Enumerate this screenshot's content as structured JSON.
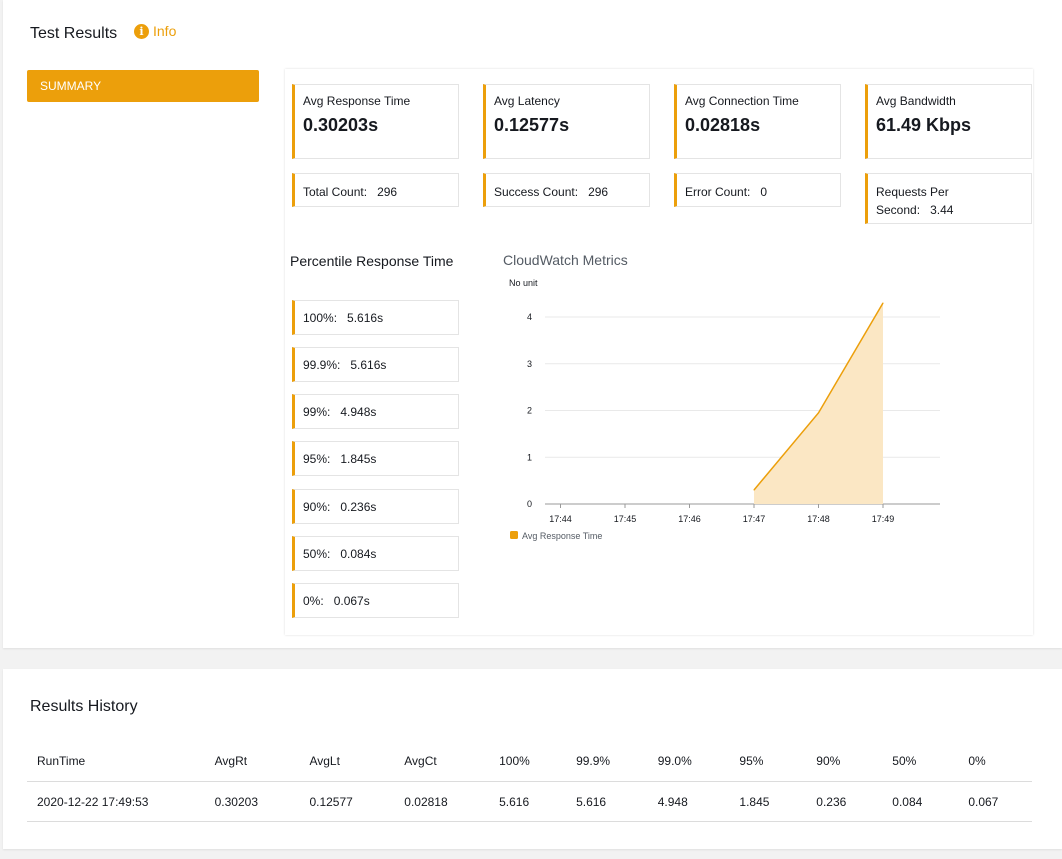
{
  "results": {
    "title": "Test Results",
    "info_label": "Info",
    "summary_label": "SUMMARY"
  },
  "metrics": [
    {
      "label": "Avg Response Time",
      "value": "0.30203s"
    },
    {
      "label": "Avg Latency",
      "value": "0.12577s"
    },
    {
      "label": "Avg Connection Time",
      "value": "0.02818s"
    },
    {
      "label": "Avg Bandwidth",
      "value": "61.49 Kbps"
    }
  ],
  "counts": [
    {
      "label": "Total Count:",
      "value": "296"
    },
    {
      "label": "Success Count:",
      "value": "296"
    },
    {
      "label": "Error Count:",
      "value": "0"
    },
    {
      "label_line1": "Requests Per",
      "label_line2": "Second:",
      "value": "3.44"
    }
  ],
  "percentiles": {
    "title": "Percentile Response Time",
    "items": [
      {
        "label": "100%:",
        "value": "5.616s"
      },
      {
        "label": "99.9%:",
        "value": "5.616s"
      },
      {
        "label": "99%:",
        "value": "4.948s"
      },
      {
        "label": "95%:",
        "value": "1.845s"
      },
      {
        "label": "90%:",
        "value": "0.236s"
      },
      {
        "label": "50%:",
        "value": "0.084s"
      },
      {
        "label": "0%:",
        "value": "0.067s"
      }
    ]
  },
  "chart_data": {
    "type": "area",
    "title": "CloudWatch Metrics",
    "ylabel": "No unit",
    "x": [
      "17:44",
      "17:45",
      "17:46",
      "17:47",
      "17:48",
      "17:49"
    ],
    "yticks": [
      0,
      1,
      2,
      3,
      4
    ],
    "ylim": [
      0,
      4
    ],
    "series": [
      {
        "name": "Avg Response Time",
        "color": "#ec9f0b",
        "fill": "#fbe7c4",
        "points": [
          {
            "x": "17:47",
            "y": 0.3
          },
          {
            "x": "17:48",
            "y": 1.95
          },
          {
            "x": "17:49",
            "y": 4.3
          }
        ]
      }
    ],
    "grid": true,
    "legend": "bottom-left"
  },
  "history": {
    "title": "Results History",
    "columns": [
      "RunTime",
      "AvgRt",
      "AvgLt",
      "AvgCt",
      "100%",
      "99.9%",
      "99.0%",
      "95%",
      "90%",
      "50%",
      "0%"
    ],
    "rows": [
      [
        "2020-12-22 17:49:53",
        "0.30203",
        "0.12577",
        "0.02818",
        "5.616",
        "5.616",
        "4.948",
        "1.845",
        "0.236",
        "0.084",
        "0.067"
      ]
    ]
  },
  "colors": {
    "accent": "#ec9f0b",
    "text": "#16191f"
  }
}
